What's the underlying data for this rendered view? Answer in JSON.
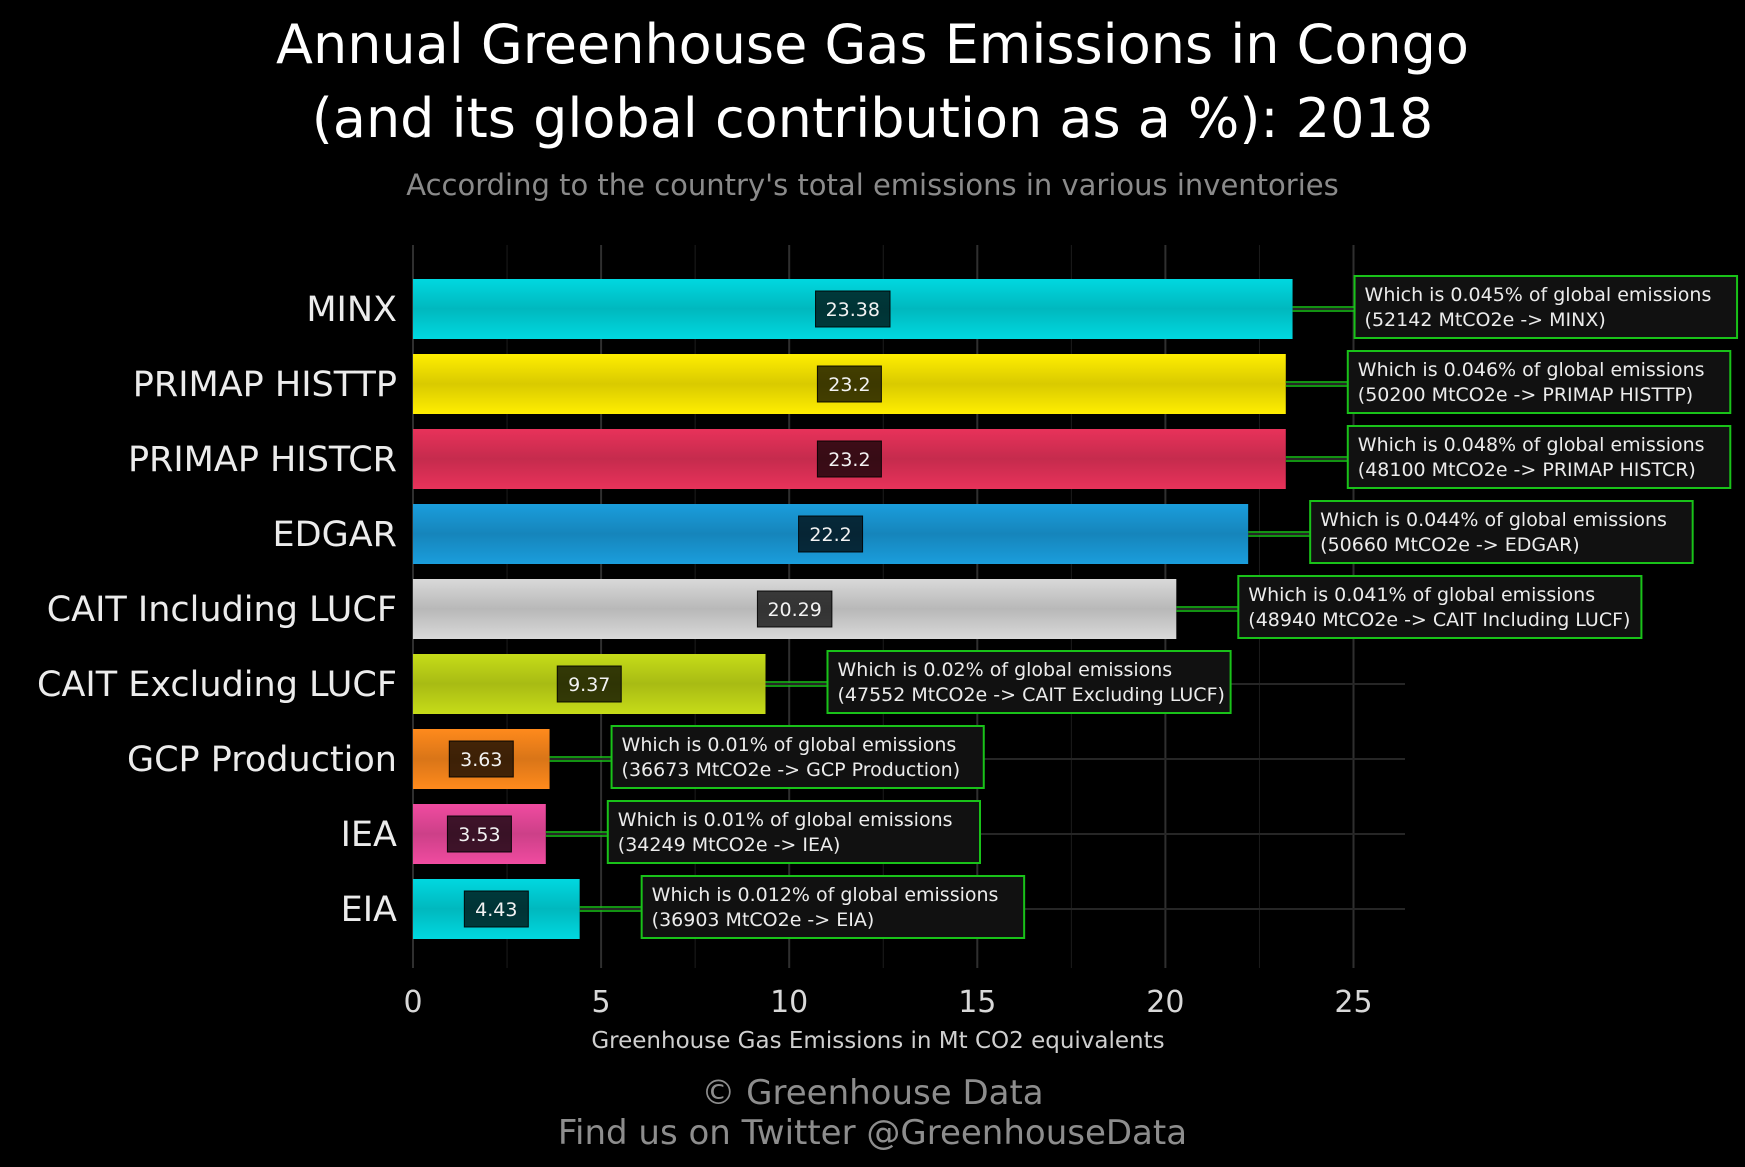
{
  "title_lines": [
    "Annual Greenhouse Gas Emissions in Congo",
    "(and its global contribution as a %): 2018"
  ],
  "subtitle": "According to the country's total emissions in various inventories",
  "footer": {
    "line1": "© Greenhouse Data",
    "line2": "Find us on Twitter @GreenhouseData"
  },
  "chart_data": {
    "type": "bar",
    "orientation": "horizontal",
    "title": "Annual Greenhouse Gas Emissions in Congo (and its global contribution as a %): 2018",
    "subtitle": "According to the country's total emissions in various inventories",
    "xlabel": "Greenhouse Gas Emissions in Mt CO2 equivalents",
    "ylabel": "",
    "xlim": [
      0,
      26.4
    ],
    "xticks": [
      0,
      5,
      10,
      15,
      20,
      25
    ],
    "grid": true,
    "categories": [
      "MINX",
      "PRIMAP HISTTP",
      "PRIMAP HISTCR",
      "EDGAR",
      "CAIT Including LUCF",
      "CAIT Excluding LUCF",
      "GCP Production",
      "IEA",
      "EIA"
    ],
    "values": [
      23.38,
      23.2,
      23.2,
      22.2,
      20.29,
      9.37,
      3.63,
      3.53,
      4.43
    ],
    "value_labels": [
      "23.38",
      "23.2",
      "23.2",
      "22.2",
      "20.29",
      "9.37",
      "3.63",
      "3.53",
      "4.43"
    ],
    "colors": [
      "#00d8e0",
      "#ffee00",
      "#e8325a",
      "#1a9ddc",
      "#d9d9d9",
      "#c6dc18",
      "#ff8a1c",
      "#f04ba0",
      "#00d8e0"
    ],
    "annotations": [
      [
        "Which is 0.045% of global emissions",
        "(52142 MtCO2e -> MINX)"
      ],
      [
        "Which is 0.046% of global emissions",
        "(50200 MtCO2e -> PRIMAP HISTTP)"
      ],
      [
        "Which is 0.048% of global emissions",
        "(48100 MtCO2e -> PRIMAP HISTCR)"
      ],
      [
        "Which is 0.044% of global emissions",
        "(50660 MtCO2e -> EDGAR)"
      ],
      [
        "Which is 0.041% of global emissions",
        "(48940 MtCO2e -> CAIT Including LUCF)"
      ],
      [
        "Which is 0.02% of global emissions",
        "(47552 MtCO2e -> CAIT Excluding LUCF)"
      ],
      [
        "Which is 0.01% of global emissions",
        "(36673 MtCO2e -> GCP Production)"
      ],
      [
        "Which is 0.01% of global emissions",
        "(34249 MtCO2e -> IEA)"
      ],
      [
        "Which is 0.012% of global emissions",
        "(36903 MtCO2e -> EIA)"
      ]
    ],
    "annotation_color": "#19c219"
  }
}
